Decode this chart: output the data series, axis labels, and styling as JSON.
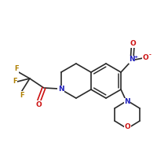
{
  "bg_color": "#ffffff",
  "bond_color": "#2a2a2a",
  "bond_width": 1.2,
  "atom_colors": {
    "N": "#2020bb",
    "O": "#cc1010",
    "F": "#b08000",
    "C": "#2a2a2a"
  },
  "figsize": [
    2.0,
    2.0
  ],
  "dpi": 100
}
